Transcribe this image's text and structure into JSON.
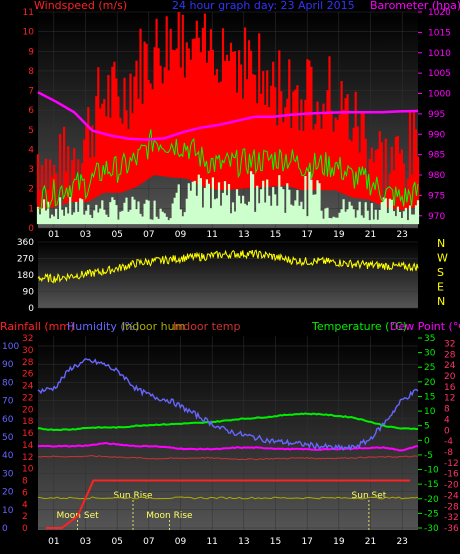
{
  "colors": {
    "windspeed": "#ff0000",
    "gust": "#00ff00",
    "windrun": "#ccffcc",
    "barometer": "#ff00ff",
    "direction": "#ffff00",
    "humidity": "#6666ff",
    "indoor_hum": "#aaaa00",
    "indoor_temp": "#cc3333",
    "temperature": "#00ee00",
    "dew_point": "#ff00ff",
    "rainfall": "#ff2222",
    "axis_left_wind": "#ff2222",
    "axis_right_baro": "#ff00ff",
    "title": "#3333ff"
  },
  "chart_data": [
    {
      "type": "line",
      "title": "24 hour graph day: 23 April 2015",
      "left_label": "Windspeed (m/s)",
      "right_label": "Barometer (hpa)",
      "ylim_left": [
        0,
        11
      ],
      "ylim_right": [
        967,
        1020
      ],
      "left_ticks": [
        "0",
        "1",
        "2",
        "3",
        "4",
        "5",
        "6",
        "7",
        "8",
        "9",
        "10",
        "11"
      ],
      "right_ticks": [
        "970",
        "975",
        "980",
        "985",
        "990",
        "995",
        "1000",
        "1005",
        "1010",
        "1015",
        "1020"
      ],
      "x_ticks": [
        "01",
        "03",
        "05",
        "07",
        "09",
        "11",
        "13",
        "15",
        "17",
        "19",
        "21",
        "23"
      ],
      "series": [
        {
          "name": "Windspeed",
          "values": [
            3.8,
            2.4,
            3.6,
            4.9,
            6.8,
            6.4,
            8.2,
            9.0,
            9.6,
            9.0,
            8.7,
            9.6,
            8.9,
            8.4,
            6.9,
            7.3,
            6.7,
            7.4,
            6.4,
            5.5,
            4.6,
            3.2,
            3.4,
            4.1
          ]
        },
        {
          "name": "Gust",
          "values": [
            1.5,
            1.8,
            2.2,
            2.2,
            3.0,
            3.0,
            3.5,
            4.5,
            4.3,
            4.2,
            3.5,
            3.2,
            3.3,
            3.4,
            3.5,
            3.6,
            3.2,
            3.2,
            3.2,
            2.6,
            2.4,
            1.8,
            1.5,
            1.8
          ]
        },
        {
          "name": "Barometer",
          "values": [
            1000.3,
            998.0,
            995.4,
            990.9,
            989.7,
            988.9,
            988.7,
            989.0,
            990.5,
            991.6,
            992.3,
            993.3,
            994.3,
            994.3,
            994.8,
            995.1,
            995.3,
            995.4,
            995.4,
            995.4,
            995.6,
            995.7
          ]
        }
      ]
    },
    {
      "type": "line",
      "title": "",
      "ylim": [
        0,
        360
      ],
      "y_ticks": [
        "0",
        "90",
        "180",
        "270",
        "360"
      ],
      "compass": [
        "N",
        "W",
        "S",
        "E",
        "N"
      ],
      "x_ticks": [
        "01",
        "03",
        "05",
        "07",
        "09",
        "11",
        "13",
        "15",
        "17",
        "19",
        "21",
        "23"
      ],
      "series": [
        {
          "name": "Direction",
          "values": [
            165,
            160,
            175,
            185,
            200,
            220,
            245,
            255,
            265,
            275,
            280,
            290,
            295,
            295,
            285,
            265,
            255,
            255,
            250,
            240,
            235,
            230,
            225,
            225
          ]
        }
      ]
    },
    {
      "type": "line",
      "title": "",
      "labels": {
        "rainfall": "Rainfall (mm)",
        "humidity": "Humidity (%)",
        "indoor_hum": "Indoor hum",
        "indoor_temp": "Indoor temp",
        "temperature": "Temperature (°C)",
        "dew_point": "Dew Point (°C)"
      },
      "hum_ticks": [
        "0",
        "10",
        "20",
        "30",
        "40",
        "50",
        "60",
        "70",
        "80",
        "90",
        "100"
      ],
      "rain_ticks": [
        "0",
        "2",
        "4",
        "6",
        "8",
        "10",
        "12",
        "14",
        "16",
        "18",
        "20",
        "22",
        "24",
        "26",
        "28",
        "30",
        "32"
      ],
      "temp_ticks": [
        "-30",
        "-25",
        "-20",
        "-15",
        "-10",
        "-5",
        "0",
        "5",
        "10",
        "15",
        "20",
        "25",
        "30",
        "35"
      ],
      "dew_ticks": [
        "-36",
        "-34",
        "-32",
        "-30",
        "-28",
        "-26",
        "-24",
        "-22",
        "-20",
        "-18",
        "-16",
        "-14",
        "-12",
        "-10",
        "-8",
        "-6",
        "-4",
        "-2",
        "0",
        "2",
        "4",
        "6",
        "8",
        "10",
        "12",
        "14",
        "16",
        "18",
        "20",
        "22",
        "24",
        "26",
        "28",
        "30",
        "32",
        "34"
      ],
      "x_ticks": [
        "01",
        "03",
        "05",
        "07",
        "09",
        "11",
        "13",
        "15",
        "17",
        "19",
        "21",
        "23"
      ],
      "events": [
        {
          "label": "Moon Set",
          "hour": 2.5
        },
        {
          "label": "Sun Rise",
          "hour": 6.0
        },
        {
          "label": "Moon Rise",
          "hour": 8.3
        },
        {
          "label": "Sun Set",
          "hour": 20.9
        }
      ],
      "series": [
        {
          "name": "Humidity",
          "values": [
            75,
            77,
            88,
            92,
            90,
            85,
            76,
            72,
            70,
            65,
            60,
            55,
            52,
            50,
            48,
            47,
            46,
            45,
            44,
            44,
            48,
            58,
            70,
            76
          ]
        },
        {
          "name": "Temperature",
          "values": [
            4.0,
            3.6,
            3.7,
            4.3,
            4.4,
            4.4,
            5.0,
            5.3,
            5.5,
            5.8,
            6.0,
            6.5,
            7.2,
            7.6,
            8.0,
            8.7,
            9.1,
            9.0,
            8.4,
            7.9,
            6.5,
            4.9,
            4.0,
            4.0
          ]
        },
        {
          "name": "Dew Point",
          "values": [
            -2.0,
            -2.0,
            -2.0,
            -1.8,
            -1.0,
            -1.5,
            -2.0,
            -2.0,
            -2.5,
            -3.0,
            -3.0,
            -3.0,
            -2.5,
            -2.5,
            -2.7,
            -3.0,
            -3.0,
            -3.2,
            -3.0,
            -2.8,
            -2.6,
            -2.5,
            -3.5,
            -2.0
          ]
        },
        {
          "name": "Indoor hum",
          "values": [
            44,
            44,
            44,
            44,
            44,
            44,
            44,
            44,
            44,
            44,
            44,
            44,
            44,
            44,
            44,
            44,
            44,
            44,
            44,
            44,
            44,
            44,
            44,
            44
          ]
        },
        {
          "name": "Indoor temp",
          "values": [
            -5.5,
            -5.5,
            -5.6,
            -5.4,
            -5.5,
            -5.8,
            -6.0,
            -6.3,
            -6.2,
            -6.1,
            -6.0,
            -6.2,
            -6.4,
            -6.5,
            -6.3,
            -6.2,
            -6.0,
            -6.2,
            -6.1,
            -6.0,
            -5.8,
            -5.7,
            -5.6,
            -5.5
          ]
        },
        {
          "name": "Rainfall",
          "values": [
            0,
            0,
            0.2,
            0.8,
            0.8,
            0.8,
            0.8,
            0.8,
            0.8,
            0.8,
            0.8,
            0.8,
            0.8,
            0.8,
            0.8,
            0.8,
            0.8,
            0.8,
            0.8,
            0.8,
            0.8,
            0.8,
            0.8,
            0.8
          ]
        }
      ]
    }
  ]
}
